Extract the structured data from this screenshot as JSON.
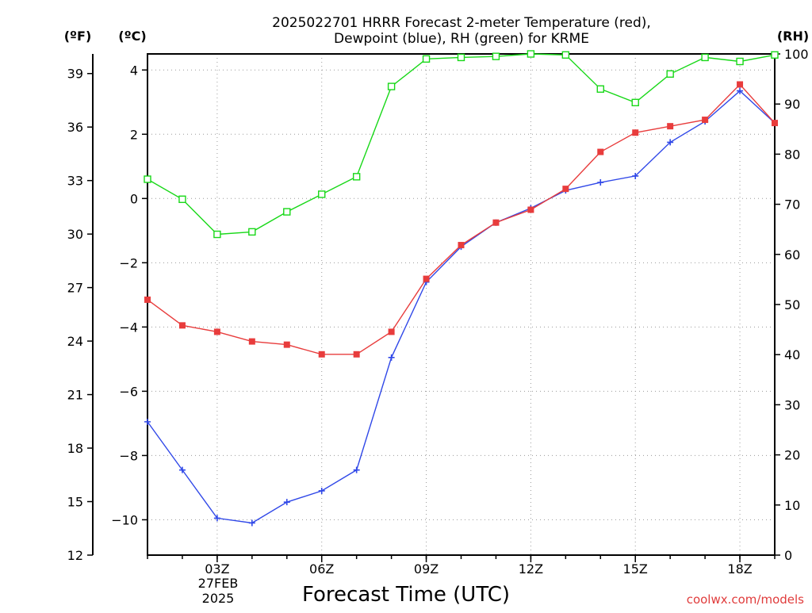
{
  "title": {
    "line1": "2025022701 HRRR Forecast 2-meter Temperature (red),",
    "line2": "Dewpoint (blue), RH (green) for KRME"
  },
  "units": {
    "left_f": "(ºF)",
    "left_c": "(ºC)",
    "right_rh": "(RH)"
  },
  "xlabel": "Forecast Time (UTC)",
  "date_label": {
    "line1": "27FEB",
    "line2": "2025"
  },
  "credit": "coolwx.com/models",
  "colors": {
    "temperature": "#e83c3c",
    "dewpoint": "#3048e8",
    "rh": "#18d818",
    "grid": "#9a9a9a"
  },
  "chart_data": {
    "type": "line",
    "x_hours": [
      1,
      2,
      3,
      4,
      5,
      6,
      7,
      8,
      9,
      10,
      11,
      12,
      13,
      14,
      15,
      16,
      17,
      18,
      19
    ],
    "x_ticks": [
      {
        "hour": 3,
        "label": "03Z"
      },
      {
        "hour": 6,
        "label": "06Z"
      },
      {
        "hour": 9,
        "label": "09Z"
      },
      {
        "hour": 12,
        "label": "12Z"
      },
      {
        "hour": 15,
        "label": "15Z"
      },
      {
        "hour": 18,
        "label": "18Z"
      }
    ],
    "xlim": [
      1,
      19
    ],
    "y_celsius": {
      "ylim": [
        -11.1,
        4.5
      ],
      "ticks": [
        -10,
        -8,
        -6,
        -4,
        -2,
        0,
        2,
        4
      ]
    },
    "y_fahrenheit": {
      "ylim": [
        12,
        40.1
      ],
      "ticks": [
        12,
        15,
        18,
        21,
        24,
        27,
        30,
        33,
        36,
        39
      ]
    },
    "y_rh": {
      "ylim": [
        0,
        100
      ],
      "ticks": [
        0,
        10,
        20,
        30,
        40,
        50,
        60,
        70,
        80,
        90,
        100
      ]
    },
    "grid": true,
    "series": [
      {
        "name": "Temperature",
        "axis": "celsius",
        "marker": "filled-square",
        "values": [
          -3.15,
          -3.95,
          -4.15,
          -4.45,
          -4.55,
          -4.85,
          -4.85,
          -4.15,
          -2.5,
          -1.45,
          -0.75,
          -0.35,
          0.3,
          1.45,
          2.05,
          2.25,
          2.45,
          3.55,
          2.35
        ]
      },
      {
        "name": "Dewpoint",
        "axis": "celsius",
        "marker": "plus",
        "values": [
          -6.95,
          -8.45,
          -9.95,
          -10.1,
          -9.45,
          -9.1,
          -8.45,
          -4.95,
          -2.6,
          -1.5,
          -0.75,
          -0.3,
          0.25,
          0.5,
          0.7,
          1.75,
          2.4,
          3.35,
          2.35
        ]
      },
      {
        "name": "RH",
        "axis": "rh",
        "marker": "open-square",
        "values": [
          75,
          71,
          64,
          64.5,
          68.5,
          72,
          75.5,
          93.5,
          99,
          99.3,
          99.5,
          100,
          99.8,
          93,
          90.3,
          96,
          99.3,
          98.5,
          99.8
        ]
      }
    ]
  }
}
